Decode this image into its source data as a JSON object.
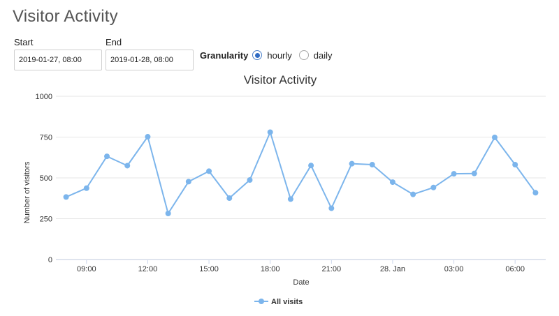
{
  "page": {
    "title": "Visitor Activity"
  },
  "filters": {
    "start_label": "Start",
    "start_value": "2019-01-27, 08:00",
    "end_label": "End",
    "end_value": "2019-01-28, 08:00",
    "granularity_label": "Granularity",
    "options": [
      {
        "label": "hourly",
        "selected": true
      },
      {
        "label": "daily",
        "selected": false
      }
    ]
  },
  "colors": {
    "series": "#7cb5ec",
    "grid": "#e6e6e6",
    "radio_accent": "#2f6bc4"
  },
  "chart_data": {
    "type": "line",
    "title": "Visitor Activity",
    "xlabel": "Date",
    "ylabel": "Number of visitors",
    "ylim": [
      0,
      1000
    ],
    "yticks": [
      0,
      250,
      500,
      750,
      1000
    ],
    "x_tick_labels": [
      "09:00",
      "12:00",
      "15:00",
      "18:00",
      "21:00",
      "28. Jan",
      "03:00",
      "06:00"
    ],
    "x": [
      "08:00",
      "09:00",
      "10:00",
      "11:00",
      "12:00",
      "13:00",
      "14:00",
      "15:00",
      "16:00",
      "17:00",
      "18:00",
      "19:00",
      "20:00",
      "21:00",
      "22:00",
      "23:00",
      "00:00",
      "01:00",
      "02:00",
      "03:00",
      "04:00",
      "05:00",
      "06:00",
      "07:00"
    ],
    "series": [
      {
        "name": "All visits",
        "values": [
          383,
          437,
          632,
          575,
          752,
          282,
          477,
          541,
          376,
          487,
          780,
          370,
          576,
          314,
          587,
          581,
          474,
          399,
          441,
          525,
          527,
          748,
          581,
          409
        ]
      }
    ],
    "grid": true,
    "legend": "bottom-center"
  }
}
